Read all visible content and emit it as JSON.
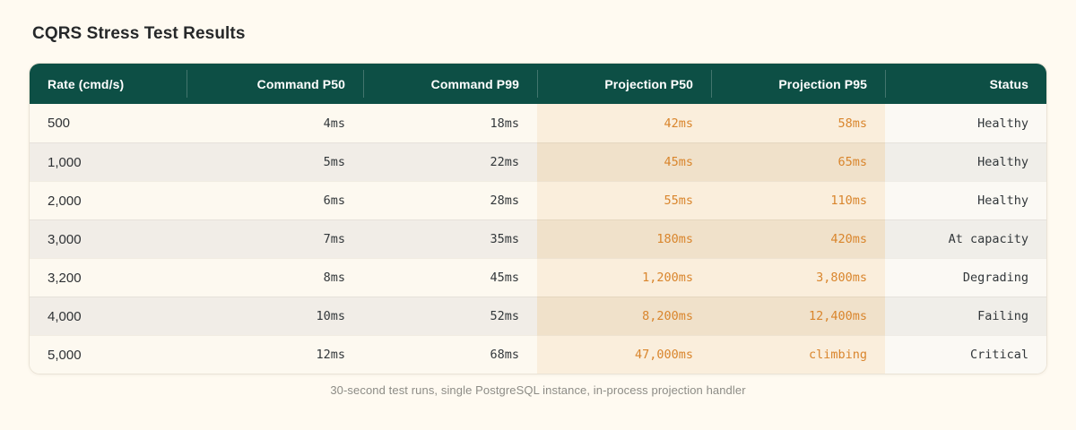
{
  "page": {
    "title": "CQRS Stress Test Results",
    "footnote": "30-second test runs, single PostgreSQL instance, in-process projection handler"
  },
  "colors": {
    "page_bg": "#FFFAF1",
    "header_bg": "#0D4F45",
    "header_text": "#FFFFFF",
    "accent_orange": "#D9852C",
    "row_odd_bg": "#FDF9F0",
    "row_even_bg": "#F1EDE7",
    "projection_odd_bg": "#FAEEDC",
    "projection_even_bg": "#F0E1CA"
  },
  "table": {
    "columns": [
      {
        "key": "rate",
        "label": "Rate (cmd/s)",
        "align": "left"
      },
      {
        "key": "command-p50",
        "label": "Command P50",
        "align": "right"
      },
      {
        "key": "command-p99",
        "label": "Command P99",
        "align": "right"
      },
      {
        "key": "projection-p50",
        "label": "Projection P50",
        "align": "right"
      },
      {
        "key": "projection-p95",
        "label": "Projection P95",
        "align": "right"
      },
      {
        "key": "status",
        "label": "Status",
        "align": "right"
      }
    ],
    "rows": [
      {
        "cells": [
          "500",
          "4ms",
          "18ms",
          "42ms",
          "58ms",
          "Healthy"
        ]
      },
      {
        "cells": [
          "1,000",
          "5ms",
          "22ms",
          "45ms",
          "65ms",
          "Healthy"
        ]
      },
      {
        "cells": [
          "2,000",
          "6ms",
          "28ms",
          "55ms",
          "110ms",
          "Healthy"
        ]
      },
      {
        "cells": [
          "3,000",
          "7ms",
          "35ms",
          "180ms",
          "420ms",
          "At capacity"
        ]
      },
      {
        "cells": [
          "3,200",
          "8ms",
          "45ms",
          "1,200ms",
          "3,800ms",
          "Degrading"
        ]
      },
      {
        "cells": [
          "4,000",
          "10ms",
          "52ms",
          "8,200ms",
          "12,400ms",
          "Failing"
        ]
      },
      {
        "cells": [
          "5,000",
          "12ms",
          "68ms",
          "47,000ms",
          "climbing",
          "Critical"
        ]
      }
    ]
  },
  "chart_data": {
    "type": "table",
    "title": "CQRS Stress Test Results",
    "caption": "30-second test runs, single PostgreSQL instance, in-process projection handler",
    "columns": [
      "Rate (cmd/s)",
      "Command P50",
      "Command P99",
      "Projection P50",
      "Projection P95",
      "Status"
    ],
    "highlighted_columns": [
      "Projection P50",
      "Projection P95"
    ],
    "rows": [
      [
        "500",
        "4ms",
        "18ms",
        "42ms",
        "58ms",
        "Healthy"
      ],
      [
        "1,000",
        "5ms",
        "22ms",
        "45ms",
        "65ms",
        "Healthy"
      ],
      [
        "2,000",
        "6ms",
        "28ms",
        "55ms",
        "110ms",
        "Healthy"
      ],
      [
        "3,000",
        "7ms",
        "35ms",
        "180ms",
        "420ms",
        "At capacity"
      ],
      [
        "3,200",
        "8ms",
        "45ms",
        "1,200ms",
        "3,800ms",
        "Degrading"
      ],
      [
        "4,000",
        "10ms",
        "52ms",
        "8,200ms",
        "12,400ms",
        "Failing"
      ],
      [
        "5,000",
        "12ms",
        "68ms",
        "47,000ms",
        "climbing",
        "Critical"
      ]
    ]
  }
}
